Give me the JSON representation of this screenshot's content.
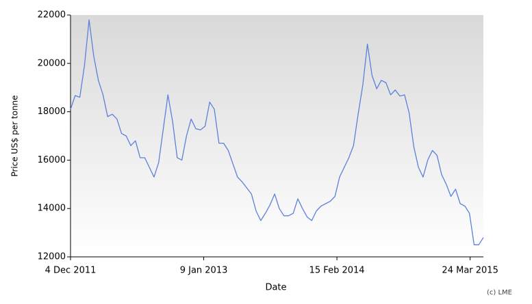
{
  "chart_data": {
    "type": "line",
    "x_label": "Date",
    "y_label": "Price US$ per tonne",
    "credit": "(c) LME",
    "x": [
      "2011-12-04",
      "2011-12-18",
      "2012-01-01",
      "2012-01-15",
      "2012-01-29",
      "2012-02-12",
      "2012-02-26",
      "2012-03-11",
      "2012-03-25",
      "2012-04-08",
      "2012-04-22",
      "2012-05-06",
      "2012-05-20",
      "2012-06-03",
      "2012-06-17",
      "2012-07-01",
      "2012-07-15",
      "2012-07-29",
      "2012-08-12",
      "2012-08-26",
      "2012-09-09",
      "2012-09-23",
      "2012-10-07",
      "2012-10-21",
      "2012-11-04",
      "2012-11-18",
      "2012-12-02",
      "2012-12-16",
      "2012-12-30",
      "2013-01-13",
      "2013-01-27",
      "2013-02-10",
      "2013-02-24",
      "2013-03-10",
      "2013-03-24",
      "2013-04-07",
      "2013-04-21",
      "2013-05-05",
      "2013-05-19",
      "2013-06-02",
      "2013-06-16",
      "2013-06-30",
      "2013-07-14",
      "2013-07-28",
      "2013-08-11",
      "2013-08-25",
      "2013-09-08",
      "2013-09-22",
      "2013-10-06",
      "2013-10-20",
      "2013-11-03",
      "2013-11-17",
      "2013-12-01",
      "2013-12-15",
      "2013-12-29",
      "2014-01-12",
      "2014-01-26",
      "2014-02-09",
      "2014-02-23",
      "2014-03-09",
      "2014-03-23",
      "2014-04-06",
      "2014-04-20",
      "2014-05-04",
      "2014-05-18",
      "2014-06-01",
      "2014-06-15",
      "2014-06-29",
      "2014-07-13",
      "2014-07-27",
      "2014-08-10",
      "2014-08-24",
      "2014-09-07",
      "2014-09-21",
      "2014-10-05",
      "2014-10-19",
      "2014-11-02",
      "2014-11-16",
      "2014-11-30",
      "2014-12-14",
      "2014-12-28",
      "2015-01-11",
      "2015-01-25",
      "2015-02-08",
      "2015-02-22",
      "2015-03-08",
      "2015-03-22",
      "2015-04-05",
      "2015-04-19",
      "2015-05-03"
    ],
    "series": [
      {
        "name": "Price",
        "color": "#5b7fdb",
        "values": [
          18100,
          18670,
          18600,
          19900,
          21800,
          20300,
          19300,
          18700,
          17800,
          17900,
          17700,
          17100,
          17000,
          16600,
          16800,
          16100,
          16100,
          15700,
          15300,
          15900,
          17300,
          18700,
          17600,
          16100,
          16000,
          17000,
          17700,
          17300,
          17250,
          17400,
          18400,
          18100,
          16700,
          16700,
          16400,
          15850,
          15300,
          15100,
          14850,
          14600,
          13900,
          13500,
          13800,
          14150,
          14600,
          14000,
          13700,
          13700,
          13800,
          14400,
          14000,
          13650,
          13500,
          13900,
          14100,
          14200,
          14300,
          14500,
          15300,
          15700,
          16100,
          16600,
          17900,
          19100,
          20800,
          19500,
          18950,
          19300,
          19200,
          18700,
          18900,
          18650,
          18700,
          17950,
          16550,
          15700,
          15300,
          16000,
          16400,
          16200,
          15400,
          15000,
          14500,
          14800,
          14200,
          14100,
          13800,
          12500,
          12500,
          12800
        ]
      }
    ],
    "xlim": [
      "2011-12-04",
      "2015-05-03"
    ],
    "xticks": [
      {
        "value": "2011-12-04",
        "label": "4 Dec 2011"
      },
      {
        "value": "2013-01-09",
        "label": "9 Jan 2013"
      },
      {
        "value": "2014-02-15",
        "label": "15 Feb 2014"
      },
      {
        "value": "2015-03-24",
        "label": "24 Mar 2015"
      }
    ],
    "ylim": [
      12000,
      22000
    ],
    "yticks": [
      12000,
      14000,
      16000,
      18000,
      20000,
      22000
    ]
  }
}
